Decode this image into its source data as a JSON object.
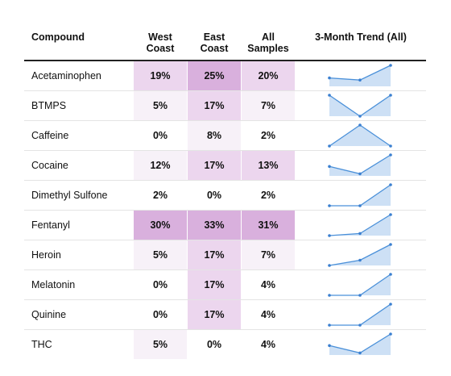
{
  "headers": {
    "compound": "Compound",
    "west": [
      "West",
      "Coast"
    ],
    "east": [
      "East",
      "Coast"
    ],
    "all": [
      "All",
      "Samples"
    ],
    "trend": "3-Month Trend (All)"
  },
  "colors": {
    "heat_base": "#f7f1f8",
    "heat_mid": "#ecd6ee",
    "heat_high": "#d9b0dd",
    "spark_line": "#4a90d9",
    "spark_fill": "#cde0f5",
    "spark_point": "#3a7fd0"
  },
  "rows": [
    {
      "name": "Acetaminophen",
      "west": "19%",
      "east": "25%",
      "all": "20%",
      "trend": [
        0.4,
        0.3,
        1.0
      ]
    },
    {
      "name": "BTMPS",
      "west": "5%",
      "east": "17%",
      "all": "7%",
      "trend": [
        1.0,
        0.0,
        1.0
      ]
    },
    {
      "name": "Caffeine",
      "west": "0%",
      "east": "8%",
      "all": "2%",
      "trend": [
        0.0,
        1.0,
        0.0
      ]
    },
    {
      "name": "Cocaine",
      "west": "12%",
      "east": "17%",
      "all": "13%",
      "trend": [
        0.45,
        0.1,
        1.0
      ]
    },
    {
      "name": "Dimethyl Sulfone",
      "west": "2%",
      "east": "0%",
      "all": "2%",
      "trend": [
        0.0,
        0.0,
        1.0
      ]
    },
    {
      "name": "Fentanyl",
      "west": "30%",
      "east": "33%",
      "all": "31%",
      "trend": [
        0.0,
        0.1,
        1.0
      ]
    },
    {
      "name": "Heroin",
      "west": "5%",
      "east": "17%",
      "all": "7%",
      "trend": [
        0.0,
        0.25,
        1.0
      ]
    },
    {
      "name": "Melatonin",
      "west": "0%",
      "east": "17%",
      "all": "4%",
      "trend": [
        0.0,
        0.0,
        1.0
      ]
    },
    {
      "name": "Quinine",
      "west": "0%",
      "east": "17%",
      "all": "4%",
      "trend": [
        0.0,
        0.0,
        1.0
      ]
    },
    {
      "name": "THC",
      "west": "5%",
      "east": "0%",
      "all": "4%",
      "trend": [
        0.45,
        0.1,
        1.0
      ]
    }
  ]
}
